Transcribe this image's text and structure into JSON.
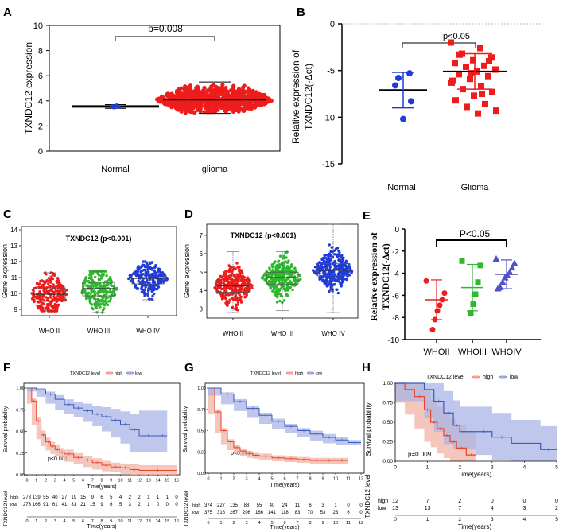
{
  "colors": {
    "red": "#ee1c1c",
    "blue": "#1f3bdb",
    "green": "#2db82d",
    "km_high": "#e8442b",
    "km_low": "#3b5bb8",
    "km_high_fill": "#f2b3a6",
    "km_low_fill": "#aab4e6",
    "purple": "#5151c8"
  },
  "chart_data": [
    {
      "panel": "A",
      "type": "scatter",
      "ylabel": "TXNDC12 expression",
      "categories": [
        "Normal",
        "glioma"
      ],
      "ylim": [
        0,
        10
      ],
      "yticks": [
        "0",
        "2",
        "4",
        "6",
        "8",
        "10"
      ],
      "groups": [
        {
          "name": "Normal",
          "n": 5,
          "mean": 3.55,
          "sd": 0.12,
          "min": 3.4,
          "max": 3.7
        },
        {
          "name": "glioma",
          "n": 698,
          "mean": 4.1,
          "sd": 0.45,
          "min": 3.0,
          "max": 5.5
        }
      ],
      "pvalue": "p=0.008"
    },
    {
      "panel": "B",
      "type": "scatter",
      "ylabel_line1": "Relative expression of",
      "ylabel_line2": "TXNDC12(-Δct)",
      "categories": [
        "Normal",
        "Glioma"
      ],
      "ylim": [
        -15,
        0
      ],
      "yticks": [
        "0",
        "-5",
        "-10",
        "-15"
      ],
      "groups": [
        {
          "name": "Normal",
          "values": [
            -5.3,
            -5.8,
            -6.6,
            -8.3,
            -10.2
          ],
          "mean": -7.1,
          "sd": 1.9
        },
        {
          "name": "Glioma",
          "values": [
            -2.0,
            -2.6,
            -3.2,
            -3.6,
            -3.9,
            -4.2,
            -4.5,
            -4.6,
            -4.9,
            -5.1,
            -5.4,
            -5.6,
            -5.9,
            -6.3,
            -6.7,
            -7.0,
            -7.3,
            -7.7,
            -8.2,
            -8.6,
            -8.9,
            -9.3,
            -9.6,
            -3.3,
            -4.0,
            -5.3,
            -6.1,
            -7.5
          ],
          "mean": -5.1,
          "sd": 1.9
        }
      ],
      "pvalue": "p<0.05"
    },
    {
      "panel": "C",
      "type": "box",
      "title": "TXNDC12 (p<0.001)",
      "ylabel": "Gene expression",
      "categories": [
        "WHO II",
        "WHO III",
        "WHO IV"
      ],
      "ylim": [
        8.6,
        14.2
      ],
      "yticks": [
        "9",
        "10",
        "11",
        "12",
        "13",
        "14"
      ],
      "groups": [
        {
          "q1": 9.5,
          "median": 9.95,
          "q3": 10.35,
          "min": 8.9,
          "max": 11.3
        },
        {
          "q1": 9.85,
          "median": 10.3,
          "q3": 10.7,
          "min": 8.8,
          "max": 11.4
        },
        {
          "q1": 10.6,
          "median": 10.95,
          "q3": 11.25,
          "min": 9.6,
          "max": 12.0
        }
      ]
    },
    {
      "panel": "D",
      "type": "box",
      "title": "TXNDC12 (p<0.001)",
      "ylabel": "Gene expression",
      "categories": [
        "WHO II",
        "WHO III",
        "WHO IV"
      ],
      "ylim": [
        2.5,
        7.6
      ],
      "yticks": [
        "3",
        "4",
        "5",
        "6",
        "7"
      ],
      "groups": [
        {
          "q1": 3.9,
          "median": 4.25,
          "q3": 4.6,
          "min": 2.8,
          "max": 6.1
        },
        {
          "q1": 4.35,
          "median": 4.7,
          "q3": 5.0,
          "min": 2.9,
          "max": 6.1
        },
        {
          "q1": 4.8,
          "median": 5.1,
          "q3": 5.45,
          "min": 2.8,
          "max": 7.6
        }
      ]
    },
    {
      "panel": "E",
      "type": "scatter",
      "ylabel_line1": "Relative expression of",
      "ylabel_line2": "TXNDC12(-Δct)",
      "categories": [
        "WHOII",
        "WHOIII",
        "WHOIV"
      ],
      "ylim": [
        -10,
        0
      ],
      "yticks": [
        "0",
        "-2",
        "-4",
        "-6",
        "-8",
        "-10"
      ],
      "groups": [
        {
          "values": [
            -4.7,
            -5.8,
            -6.4,
            -6.9,
            -7.4,
            -8.2,
            -9.1
          ],
          "mean": -6.4,
          "sd": 1.8
        },
        {
          "values": [
            -2.9,
            -3.3,
            -4.8,
            -5.9,
            -6.8,
            -7.6
          ],
          "mean": -5.3,
          "sd": 2.1
        },
        {
          "values": [
            -2.7,
            -3.1,
            -3.5,
            -3.9,
            -4.2,
            -4.4,
            -4.8,
            -5.3,
            -5.4
          ],
          "mean": -4.1,
          "sd": 1.3
        }
      ],
      "pvalue": "P<0.05"
    },
    {
      "panel": "F",
      "type": "line",
      "legend_title": "TXNDC12 level",
      "legend": [
        "high",
        "low"
      ],
      "xlabel": "Time(years)",
      "ylabel": "Survival probability",
      "xlim": [
        0,
        16
      ],
      "ylim": [
        0,
        1
      ],
      "yticks": [
        "0.00",
        "0.25",
        "0.50",
        "0.75",
        "1.00"
      ],
      "pvalue": "p<0.001",
      "risk_label": "TXNDC12 level",
      "series": [
        {
          "name": "high",
          "x": [
            0,
            0.5,
            1,
            1.5,
            2,
            2.5,
            3,
            3.5,
            4,
            5,
            6,
            7,
            8,
            9,
            10,
            11,
            12,
            16
          ],
          "y": [
            1,
            0.85,
            0.62,
            0.46,
            0.38,
            0.33,
            0.29,
            0.26,
            0.24,
            0.2,
            0.17,
            0.14,
            0.11,
            0.09,
            0.08,
            0.06,
            0.05,
            0.05
          ],
          "lo": [
            1,
            0.82,
            0.57,
            0.41,
            0.33,
            0.28,
            0.24,
            0.21,
            0.19,
            0.15,
            0.12,
            0.09,
            0.06,
            0.04,
            0.03,
            0.01,
            0.0,
            0.0
          ],
          "hi": [
            1,
            0.88,
            0.67,
            0.51,
            0.43,
            0.38,
            0.34,
            0.31,
            0.29,
            0.25,
            0.22,
            0.19,
            0.16,
            0.14,
            0.13,
            0.12,
            0.11,
            0.11
          ]
        },
        {
          "name": "low",
          "x": [
            0,
            1,
            2,
            3,
            4,
            5,
            6,
            7,
            8,
            9,
            10,
            11,
            12,
            14,
            15
          ],
          "y": [
            1,
            0.98,
            0.93,
            0.87,
            0.81,
            0.77,
            0.74,
            0.7,
            0.67,
            0.63,
            0.58,
            0.52,
            0.45,
            0.45,
            0.45
          ],
          "lo": [
            1,
            0.96,
            0.9,
            0.82,
            0.75,
            0.7,
            0.66,
            0.61,
            0.56,
            0.5,
            0.43,
            0.36,
            0.26,
            0.26,
            0.26
          ],
          "hi": [
            1,
            1,
            0.96,
            0.92,
            0.87,
            0.84,
            0.82,
            0.79,
            0.78,
            0.76,
            0.73,
            0.7,
            0.74,
            0.74,
            0.74
          ]
        }
      ],
      "risk_table": {
        "times": [
          "0",
          "1",
          "2",
          "3",
          "4",
          "5",
          "6",
          "7",
          "8",
          "9",
          "10",
          "11",
          "12",
          "13",
          "14",
          "15",
          "16"
        ],
        "high": [
          "273",
          "139",
          "55",
          "40",
          "27",
          "19",
          "15",
          "9",
          "6",
          "5",
          "4",
          "2",
          "2",
          "1",
          "1",
          "1",
          "0"
        ],
        "low": [
          "273",
          "166",
          "91",
          "61",
          "41",
          "31",
          "21",
          "15",
          "9",
          "6",
          "5",
          "3",
          "2",
          "1",
          "0",
          "0",
          "0"
        ]
      }
    },
    {
      "panel": "G",
      "type": "line",
      "legend_title": "TXNDC12 level",
      "legend": [
        "high",
        "low"
      ],
      "xlabel": "Time(years)",
      "ylabel": "Survival probability",
      "xlim": [
        0,
        12
      ],
      "ylim": [
        0,
        1
      ],
      "yticks": [
        "0.00",
        "0.25",
        "0.50",
        "0.75",
        "1.00"
      ],
      "pvalue": "p<0.001",
      "risk_label": "TXNDC12 level",
      "series": [
        {
          "name": "high",
          "x": [
            0,
            0.5,
            1,
            1.5,
            2,
            2.5,
            3,
            3.5,
            4,
            5,
            6,
            7,
            8,
            9,
            10,
            11
          ],
          "y": [
            1,
            0.72,
            0.5,
            0.37,
            0.3,
            0.26,
            0.23,
            0.21,
            0.2,
            0.18,
            0.17,
            0.16,
            0.15,
            0.15,
            0.15,
            0.15
          ],
          "lo": [
            1,
            0.69,
            0.47,
            0.34,
            0.27,
            0.23,
            0.2,
            0.18,
            0.17,
            0.15,
            0.14,
            0.13,
            0.12,
            0.11,
            0.11,
            0.11
          ],
          "hi": [
            1,
            0.75,
            0.53,
            0.4,
            0.33,
            0.29,
            0.26,
            0.24,
            0.23,
            0.21,
            0.2,
            0.19,
            0.18,
            0.18,
            0.18,
            0.18
          ]
        },
        {
          "name": "low",
          "x": [
            0,
            1,
            2,
            3,
            4,
            5,
            6,
            7,
            8,
            9,
            10,
            11,
            12
          ],
          "y": [
            1,
            0.93,
            0.84,
            0.76,
            0.68,
            0.61,
            0.55,
            0.5,
            0.46,
            0.42,
            0.39,
            0.36,
            0.36
          ],
          "lo": [
            1,
            0.91,
            0.81,
            0.73,
            0.65,
            0.58,
            0.52,
            0.47,
            0.42,
            0.38,
            0.35,
            0.33,
            0.33
          ],
          "hi": [
            1,
            0.95,
            0.87,
            0.79,
            0.71,
            0.64,
            0.58,
            0.53,
            0.5,
            0.46,
            0.43,
            0.39,
            0.39
          ]
        }
      ],
      "risk_table": {
        "times": [
          "0",
          "1",
          "2",
          "3",
          "4",
          "5",
          "6",
          "7",
          "8",
          "9",
          "10",
          "11",
          "12"
        ],
        "high": [
          "374",
          "227",
          "135",
          "88",
          "55",
          "40",
          "24",
          "11",
          "6",
          "3",
          "1",
          "0",
          "0"
        ],
        "low": [
          "375",
          "318",
          "267",
          "206",
          "166",
          "141",
          "118",
          "83",
          "70",
          "53",
          "23",
          "6",
          "0"
        ]
      }
    },
    {
      "panel": "H",
      "type": "line",
      "legend_title": "TXNDC12 level",
      "legend": [
        "high",
        "low"
      ],
      "xlabel": "Time(years)",
      "ylabel": "Survival probability",
      "xlim": [
        0,
        5
      ],
      "ylim": [
        0,
        1
      ],
      "yticks": [
        "0.00",
        "0.25",
        "0.50",
        "0.75",
        "1.00"
      ],
      "pvalue": "p=0.009",
      "risk_label": "TXNDC12 level",
      "series": [
        {
          "name": "high",
          "x": [
            0,
            0.3,
            0.6,
            0.9,
            1.1,
            1.3,
            1.5,
            1.7,
            1.9,
            2.2,
            2.5
          ],
          "y": [
            1,
            0.92,
            0.83,
            0.66,
            0.5,
            0.42,
            0.33,
            0.25,
            0.17,
            0.08,
            0.08
          ],
          "lo": [
            1,
            0.75,
            0.6,
            0.42,
            0.25,
            0.18,
            0.1,
            0.04,
            0.0,
            0.0,
            0.0
          ],
          "hi": [
            1,
            1,
            1,
            0.9,
            0.78,
            0.7,
            0.62,
            0.55,
            0.47,
            0.38,
            0.38
          ]
        },
        {
          "name": "low",
          "x": [
            0,
            0.9,
            1.2,
            1.5,
            1.8,
            2.0,
            2.5,
            3.0,
            3.6,
            4.5,
            5.0
          ],
          "y": [
            1,
            0.92,
            0.77,
            0.62,
            0.46,
            0.38,
            0.38,
            0.31,
            0.23,
            0.15,
            0.15
          ],
          "lo": [
            1,
            0.77,
            0.55,
            0.38,
            0.22,
            0.15,
            0.15,
            0.08,
            0.02,
            0.0,
            0.0
          ],
          "hi": [
            1,
            1,
            1,
            0.9,
            0.78,
            0.7,
            0.7,
            0.62,
            0.53,
            0.45,
            0.45
          ]
        }
      ],
      "risk_table": {
        "times": [
          "0",
          "1",
          "2",
          "3",
          "4",
          "5"
        ],
        "high": [
          "12",
          "7",
          "2",
          "0",
          "0",
          "0"
        ],
        "low": [
          "13",
          "13",
          "7",
          "4",
          "3",
          "2"
        ]
      }
    }
  ]
}
